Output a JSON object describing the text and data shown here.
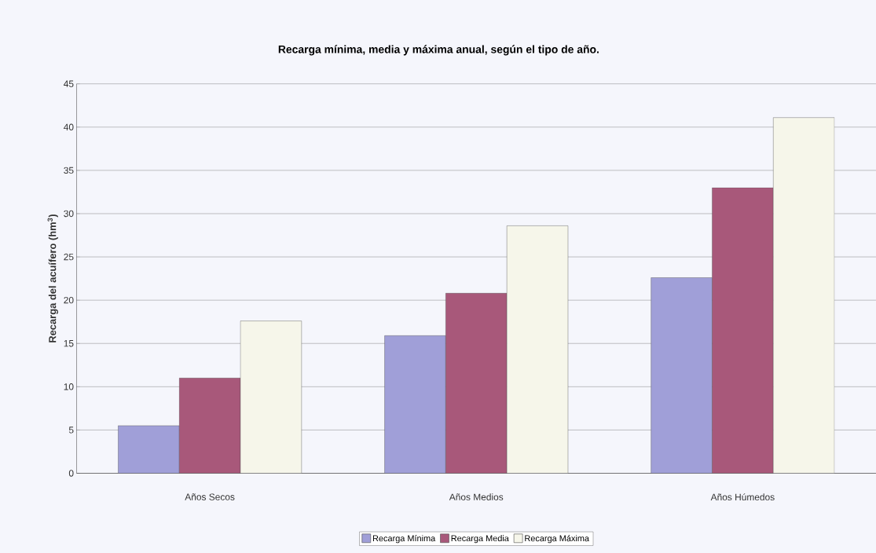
{
  "chart_data": {
    "type": "bar",
    "title": "Recarga mínima, media y máxima anual, según el tipo de año.",
    "ylabel": "Recarga del acuífero (hm$^{3}$)",
    "categories": [
      "Años Secos",
      "Años Medios",
      "Años Húmedos"
    ],
    "series": [
      {
        "name": "Recarga Mínima",
        "color": "#a09fd8",
        "values": [
          5.5,
          15.9,
          22.6
        ]
      },
      {
        "name": "Recarga Media",
        "color": "#a8587a",
        "values": [
          11.0,
          20.8,
          33.0
        ]
      },
      {
        "name": "Recarga Máxima",
        "color": "#f6f6ea",
        "values": [
          17.6,
          28.6,
          41.1
        ]
      }
    ],
    "ylim": [
      0,
      45
    ],
    "yticks": [
      0,
      5,
      10,
      15,
      20,
      25,
      30,
      35,
      40,
      45
    ],
    "grid": "y",
    "legend": "bottom"
  }
}
